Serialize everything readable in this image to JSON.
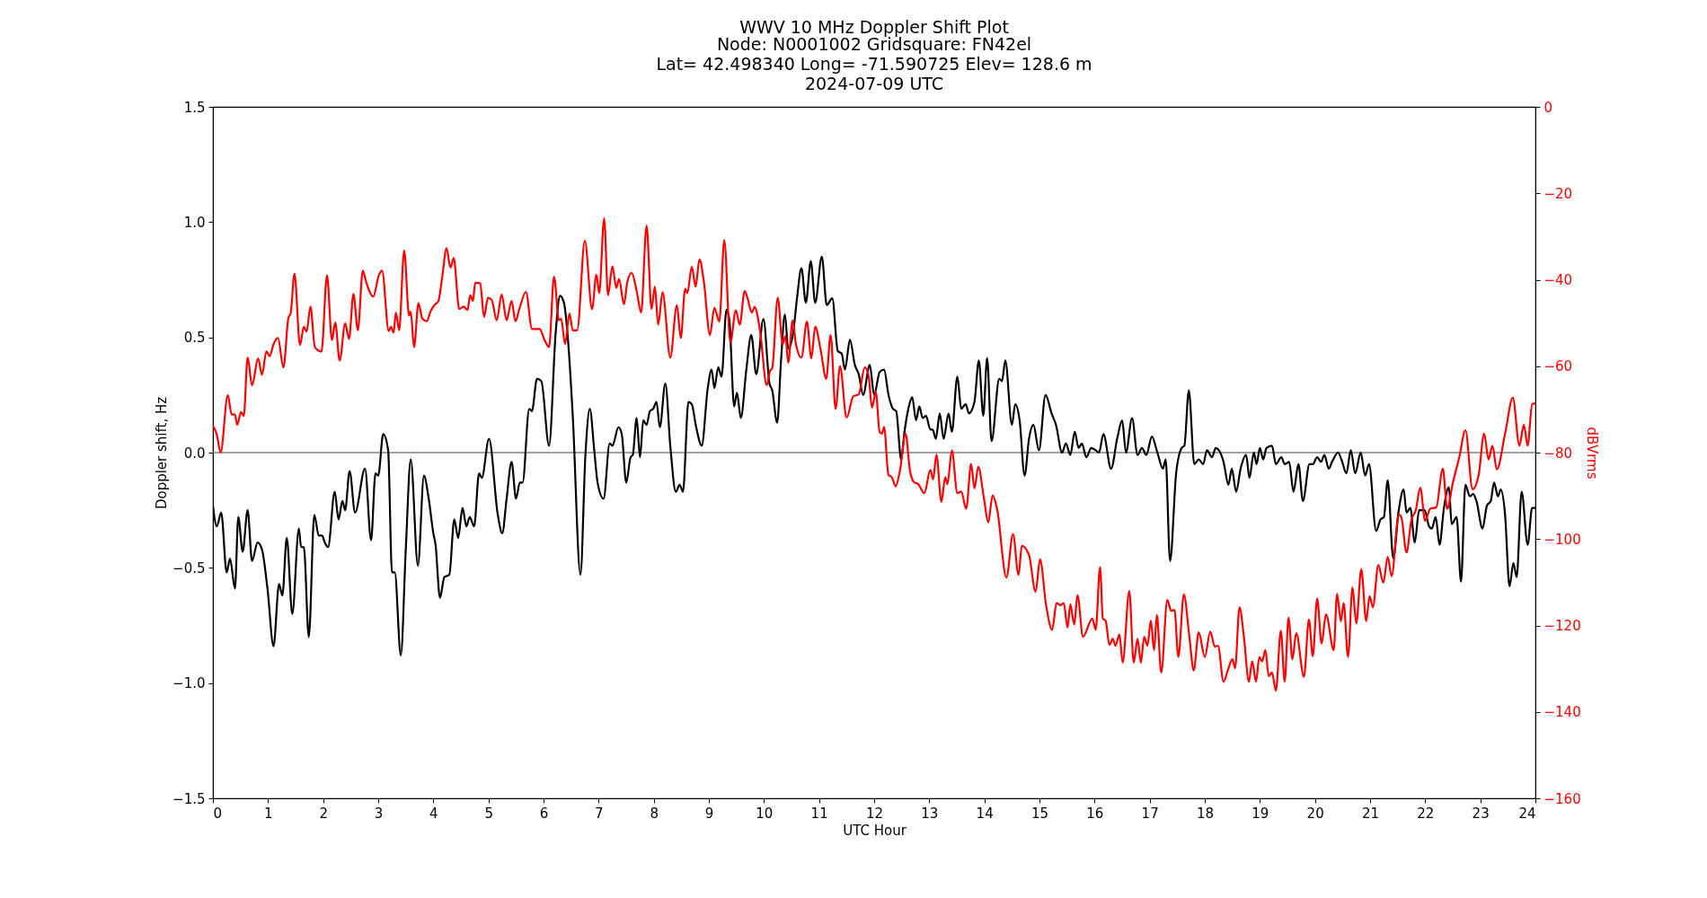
{
  "chart_data": {
    "type": "line",
    "title": "WWV 10 MHz Doppler Shift Plot",
    "subtitle": "Node:  N0001002     Gridsquare:  FN42el\nLat= 42.498340    Long= -71.590725    Elev= 128.6 m\n2024-07-09  UTC",
    "xlabel": "UTC Hour",
    "ylabel": "Doppler shift, Hz",
    "y2label": "dBVrms",
    "xlim": [
      0,
      24
    ],
    "xticks": [
      0,
      1,
      2,
      3,
      4,
      5,
      6,
      7,
      8,
      9,
      10,
      11,
      12,
      13,
      14,
      15,
      16,
      17,
      18,
      19,
      20,
      21,
      22,
      23,
      24
    ],
    "ylim": [
      -1.5,
      1.5
    ],
    "yticks": [
      {
        "value": -1.5,
        "label": "−1.5"
      },
      {
        "value": -1,
        "label": "−1.0"
      },
      {
        "value": -0.5,
        "label": "−0.5"
      },
      {
        "value": 0,
        "label": "0.0"
      },
      {
        "value": 0.5,
        "label": "0.5"
      },
      {
        "value": 1,
        "label": "1.0"
      },
      {
        "value": 1.5,
        "label": "1.5"
      }
    ],
    "y2lim": [
      -160,
      0
    ],
    "y2ticks": [
      {
        "value": -160,
        "label": "−160"
      },
      {
        "value": -140,
        "label": "−140"
      },
      {
        "value": -120,
        "label": "−120"
      },
      {
        "value": -100,
        "label": "−100"
      },
      {
        "value": -80,
        "label": "−80"
      },
      {
        "value": -60,
        "label": "−60"
      },
      {
        "value": -40,
        "label": "−40"
      },
      {
        "value": -20,
        "label": "−20"
      },
      0
    ],
    "grid": false,
    "ref_lines": [
      {
        "axis": "y",
        "value": 0,
        "color": "#808080"
      }
    ],
    "series": [
      {
        "color": "#000000",
        "x": [
          0,
          0.07,
          0.15,
          0.25,
          0.31,
          0.4,
          0.46,
          0.54,
          0.63,
          0.71,
          0.81,
          0.89,
          0.99,
          1.1,
          1.2,
          1.26,
          1.34,
          1.44,
          1.56,
          1.6,
          1.65,
          1.74,
          1.84,
          1.92,
          1.98,
          2.03,
          2.09,
          2.21,
          2.28,
          2.35,
          2.4,
          2.48,
          2.58,
          2.76,
          2.87,
          2.95,
          3,
          3.09,
          3.18,
          3.25,
          3.3,
          3.41,
          3.5,
          3.59,
          3.72,
          3.83,
          3.91,
          4,
          4.04,
          4.12,
          4.2,
          4.29,
          4.38,
          4.45,
          4.53,
          4.6,
          4.66,
          4.74,
          4.83,
          4.88,
          5.01,
          5.17,
          5.25,
          5.33,
          5.42,
          5.5,
          5.57,
          5.62,
          5.74,
          5.79,
          5.88,
          5.96,
          6.1,
          6.22,
          6.3,
          6.37,
          6.45,
          6.53,
          6.67,
          6.76,
          6.84,
          6.92,
          6.98,
          7.09,
          7.2,
          7.25,
          7.36,
          7.42,
          7.5,
          7.58,
          7.62,
          7.69,
          7.75,
          7.81,
          7.87,
          7.93,
          7.99,
          8.05,
          8.11,
          8.21,
          8.3,
          8.4,
          8.47,
          8.53,
          8.63,
          8.69,
          8.77,
          8.87,
          8.98,
          9.05,
          9.1,
          9.17,
          9.23,
          9.32,
          9.37,
          9.46,
          9.51,
          9.58,
          9.68,
          9.77,
          9.86,
          9.99,
          10.1,
          10.15,
          10.24,
          10.31,
          10.38,
          10.44,
          10.53,
          10.6,
          10.68,
          10.76,
          10.85,
          10.93,
          11.05,
          11.14,
          11.24,
          11.34,
          11.41,
          11.47,
          11.56,
          11.65,
          11.72,
          11.8,
          11.92,
          12,
          12.1,
          12.18,
          12.26,
          12.34,
          12.4,
          12.49,
          12.55,
          12.62,
          12.69,
          12.76,
          12.82,
          12.88,
          12.94,
          13.02,
          13.06,
          13.12,
          13.19,
          13.26,
          13.35,
          13.41,
          13.51,
          13.58,
          13.66,
          13.72,
          13.82,
          13.9,
          13.98,
          14.05,
          14.13,
          14.27,
          14.32,
          14.38,
          14.5,
          14.56,
          14.64,
          14.73,
          14.81,
          14.89,
          14.99,
          15.11,
          15.22,
          15.3,
          15.41,
          15.48,
          15.56,
          15.64,
          15.71,
          15.77,
          15.85,
          15.94,
          16.02,
          16.08,
          16.16,
          16.3,
          16.41,
          16.5,
          16.57,
          16.68,
          16.78,
          16.86,
          16.94,
          17.04,
          17.14,
          17.24,
          17.29,
          17.37,
          17.48,
          17.58,
          17.63,
          17.71,
          17.81,
          17.89,
          17.97,
          18.04,
          18.13,
          18.2,
          18.34,
          18.43,
          18.49,
          18.57,
          18.65,
          18.75,
          18.81,
          18.89,
          18.94,
          19,
          19.06,
          19.12,
          19.22,
          19.29,
          19.39,
          19.45,
          19.53,
          19.61,
          19.7,
          19.78,
          19.9,
          19.96,
          20.04,
          20.11,
          20.17,
          20.25,
          20.31,
          20.42,
          20.48,
          20.57,
          20.65,
          20.73,
          20.83,
          20.91,
          20.98,
          21.11,
          21.19,
          21.25,
          21.32,
          21.42,
          21.52,
          21.61,
          21.66,
          21.73,
          21.81,
          21.89,
          21.99,
          22.07,
          22.12,
          22.19,
          22.26,
          22.34,
          22.43,
          22.48,
          22.57,
          22.65,
          22.73,
          22.81,
          22.87,
          22.93,
          23.04,
          23.12,
          23.19,
          23.25,
          23.32,
          23.37,
          23.45,
          23.53,
          23.6,
          23.66,
          23.75,
          23.86,
          23.94,
          24
        ],
        "values": [
          -0.23,
          -0.32,
          -0.26,
          -0.52,
          -0.46,
          -0.59,
          -0.28,
          -0.43,
          -0.25,
          -0.47,
          -0.39,
          -0.42,
          -0.59,
          -0.84,
          -0.57,
          -0.62,
          -0.37,
          -0.7,
          -0.33,
          -0.41,
          -0.41,
          -0.8,
          -0.27,
          -0.36,
          -0.36,
          -0.39,
          -0.41,
          -0.17,
          -0.29,
          -0.21,
          -0.25,
          -0.08,
          -0.26,
          -0.07,
          -0.38,
          -0.09,
          -0.1,
          0.08,
          0.01,
          -0.52,
          -0.52,
          -0.88,
          -0.42,
          -0.03,
          -0.49,
          -0.1,
          -0.19,
          -0.35,
          -0.4,
          -0.63,
          -0.54,
          -0.53,
          -0.29,
          -0.37,
          -0.24,
          -0.32,
          -0.28,
          -0.32,
          -0.09,
          -0.11,
          0.06,
          -0.27,
          -0.35,
          -0.2,
          -0.04,
          -0.2,
          -0.13,
          -0.13,
          0.19,
          0.18,
          0.32,
          0.31,
          0.03,
          0.52,
          0.68,
          0.65,
          0.47,
          0.16,
          -0.53,
          -0.01,
          0.19,
          0.01,
          -0.13,
          -0.2,
          0.04,
          0.03,
          0.11,
          0.08,
          -0.13,
          -0.02,
          -0.01,
          0.15,
          -0.02,
          0.14,
          0.12,
          0.18,
          0.19,
          0.22,
          0.11,
          0.3,
          0.03,
          -0.17,
          -0.14,
          -0.17,
          0.22,
          0.21,
          0.11,
          0.03,
          0.28,
          0.36,
          0.28,
          0.37,
          0.33,
          0.62,
          0.58,
          0.2,
          0.26,
          0.15,
          0.36,
          0.51,
          0.34,
          0.58,
          0.3,
          0.27,
          0.13,
          0.4,
          0.6,
          0.45,
          0.52,
          0.67,
          0.8,
          0.65,
          0.83,
          0.65,
          0.85,
          0.64,
          0.67,
          0.44,
          0.43,
          0.36,
          0.49,
          0.38,
          0.34,
          0.25,
          0.38,
          0.25,
          0.35,
          0.36,
          0.25,
          0.19,
          0.18,
          -0.03,
          0.09,
          0.19,
          0.24,
          0.14,
          0.2,
          0.15,
          0.16,
          0.1,
          0.1,
          0.06,
          0.17,
          0.06,
          0.17,
          0.09,
          0.33,
          0.19,
          0.21,
          0.17,
          0.22,
          0.4,
          0.16,
          0.41,
          0.05,
          0.32,
          0.31,
          0.4,
          0.12,
          0.21,
          0.14,
          -0.1,
          0.06,
          0.12,
          0.01,
          0.25,
          0.17,
          0.12,
          0,
          0.04,
          -0.01,
          0.09,
          0.02,
          0.04,
          -0.02,
          0.02,
          0.01,
          0,
          0.08,
          -0.07,
          0.06,
          0.14,
          0,
          0.15,
          -0.01,
          0.02,
          -0.01,
          0.07,
          0,
          -0.07,
          -0.03,
          -0.47,
          -0.09,
          0.02,
          0.03,
          0.27,
          -0.05,
          -0.03,
          -0.05,
          0.01,
          -0.02,
          0.02,
          -0.04,
          -0.14,
          -0.07,
          -0.17,
          -0.07,
          -0.01,
          -0.11,
          0,
          -0.05,
          0.02,
          -0.03,
          0.02,
          0.03,
          -0.05,
          -0.02,
          -0.05,
          -0.04,
          -0.17,
          -0.05,
          -0.21,
          -0.05,
          -0.05,
          -0.02,
          -0.04,
          -0.01,
          -0.07,
          -0.04,
          0,
          -0.03,
          -0.09,
          0.01,
          -0.09,
          0,
          -0.1,
          -0.05,
          -0.34,
          -0.29,
          -0.28,
          -0.12,
          -0.46,
          -0.25,
          -0.16,
          -0.26,
          -0.24,
          -0.39,
          -0.25,
          -0.25,
          -0.32,
          -0.33,
          -0.28,
          -0.4,
          -0.24,
          -0.15,
          -0.31,
          -0.28,
          -0.56,
          -0.14,
          -0.19,
          -0.18,
          -0.21,
          -0.33,
          -0.23,
          -0.21,
          -0.13,
          -0.19,
          -0.16,
          -0.27,
          -0.58,
          -0.48,
          -0.54,
          -0.17,
          -0.4,
          -0.24,
          -0.24
        ]
      },
      {
        "color": "#ff0000",
        "axis": "y2",
        "x": [
          0,
          0.07,
          0.14,
          0.27,
          0.34,
          0.4,
          0.44,
          0.51,
          0.56,
          0.63,
          0.71,
          0.82,
          0.89,
          0.97,
          1.03,
          1.1,
          1.18,
          1.28,
          1.37,
          1.41,
          1.48,
          1.58,
          1.65,
          1.7,
          1.77,
          1.85,
          1.97,
          2.07,
          2.16,
          2.22,
          2.3,
          2.4,
          2.47,
          2.55,
          2.63,
          2.72,
          2.78,
          2.91,
          3.01,
          3.07,
          3.19,
          3.23,
          3.28,
          3.32,
          3.38,
          3.47,
          3.56,
          3.59,
          3.65,
          3.73,
          3.8,
          3.88,
          3.95,
          4.03,
          4.09,
          4.16,
          4.24,
          4.31,
          4.37,
          4.47,
          4.55,
          4.62,
          4.67,
          4.72,
          4.76,
          4.85,
          4.92,
          4.99,
          5.06,
          5.15,
          5.24,
          5.33,
          5.42,
          5.49,
          5.56,
          5.68,
          5.79,
          5.93,
          6.02,
          6.1,
          6.19,
          6.28,
          6.32,
          6.39,
          6.47,
          6.53,
          6.61,
          6.75,
          6.88,
          6.96,
          7.01,
          7.1,
          7.17,
          7.25,
          7.32,
          7.37,
          7.46,
          7.52,
          7.6,
          7.69,
          7.77,
          7.87,
          7.96,
          8.02,
          8.08,
          8.16,
          8.3,
          8.42,
          8.49,
          8.57,
          8.61,
          8.69,
          8.76,
          8.83,
          8.91,
          9.02,
          9.1,
          9.19,
          9.28,
          9.39,
          9.49,
          9.56,
          9.65,
          9.7,
          9.78,
          9.83,
          9.93,
          10.05,
          10.11,
          10.15,
          10.25,
          10.34,
          10.39,
          10.44,
          10.52,
          10.58,
          10.68,
          10.78,
          10.86,
          10.93,
          11.03,
          11.13,
          11.21,
          11.3,
          11.38,
          11.5,
          11.62,
          11.72,
          11.83,
          11.9,
          11.96,
          12.03,
          12.1,
          12.14,
          12.18,
          12.26,
          12.32,
          12.39,
          12.47,
          12.57,
          12.65,
          12.72,
          12.8,
          12.91,
          13.02,
          13.07,
          13.13,
          13.22,
          13.29,
          13.33,
          13.41,
          13.51,
          13.58,
          13.67,
          13.76,
          13.82,
          13.89,
          13.99,
          14.07,
          14.15,
          14.23,
          14.4,
          14.52,
          14.62,
          14.68,
          14.81,
          14.93,
          15.01,
          15.12,
          15.23,
          15.31,
          15.38,
          15.44,
          15.51,
          15.56,
          15.63,
          15.69,
          15.79,
          15.96,
          16.02,
          16.1,
          16.15,
          16.2,
          16.27,
          16.33,
          16.38,
          16.45,
          16.51,
          16.63,
          16.71,
          16.78,
          16.84,
          16.9,
          16.96,
          17.02,
          17.08,
          17.13,
          17.21,
          17.32,
          17.39,
          17.45,
          17.52,
          17.62,
          17.72,
          17.8,
          17.89,
          18,
          18.1,
          18.18,
          18.24,
          18.34,
          18.43,
          18.5,
          18.55,
          18.63,
          18.71,
          18.8,
          18.86,
          18.93,
          18.99,
          19.04,
          19.1,
          19.16,
          19.22,
          19.29,
          19.38,
          19.45,
          19.52,
          19.59,
          19.66,
          19.8,
          19.89,
          19.96,
          20.04,
          20.12,
          20.2,
          20.34,
          20.4,
          20.47,
          20.52,
          20.6,
          20.68,
          20.75,
          20.84,
          20.93,
          20.99,
          21.05,
          21.15,
          21.24,
          21.32,
          21.39,
          21.52,
          21.57,
          21.66,
          21.75,
          21.83,
          21.91,
          22,
          22.09,
          22.2,
          22.32,
          22.4,
          22.5,
          22.62,
          22.73,
          22.86,
          22.97,
          23.07,
          23.15,
          23.22,
          23.3,
          23.45,
          23.59,
          23.71,
          23.79,
          23.86,
          23.94,
          24
        ],
        "values": [
          -73.8,
          -75.8,
          -80,
          -66.7,
          -71.2,
          -71.2,
          -73.6,
          -70.6,
          -71.5,
          -58,
          -64.4,
          -58.2,
          -62,
          -56.6,
          -57.7,
          -54.9,
          -53.5,
          -60.3,
          -48.8,
          -47.8,
          -38.6,
          -55.1,
          -50.9,
          -52,
          -46.2,
          -55.6,
          -56.6,
          -39,
          -54,
          -49.9,
          -58.7,
          -50.1,
          -53.7,
          -43.3,
          -51.7,
          -37.9,
          -40.5,
          -43.9,
          -39,
          -37.9,
          -51.9,
          -50.9,
          -52.2,
          -47.6,
          -51.7,
          -33.2,
          -48.3,
          -47.4,
          -55.6,
          -45.4,
          -49,
          -49.6,
          -47.3,
          -45.7,
          -45,
          -39.5,
          -32.7,
          -37.2,
          -35,
          -46.8,
          -46.2,
          -47,
          -43.6,
          -44.9,
          -40.7,
          -40.8,
          -48.6,
          -44.2,
          -44.7,
          -49.4,
          -43.4,
          -49.4,
          -44.9,
          -49.6,
          -46.8,
          -42.8,
          -51.4,
          -51.4,
          -54,
          -55.6,
          -39.3,
          -49.4,
          -49,
          -54.9,
          -47.8,
          -51.7,
          -51.7,
          -31,
          -46.8,
          -38.8,
          -43.1,
          -25.8,
          -43.6,
          -36.9,
          -41.9,
          -39.8,
          -45.7,
          -40.5,
          -38.4,
          -42.6,
          -47.6,
          -27.5,
          -46.8,
          -41.6,
          -50.4,
          -42.9,
          -58,
          -45.9,
          -53.5,
          -42.1,
          -43.1,
          -37,
          -41.6,
          -35.3,
          -40.5,
          -52.8,
          -46.5,
          -49.7,
          -30.8,
          -54.5,
          -47.1,
          -50.4,
          -42.6,
          -44.2,
          -47.6,
          -46.3,
          -51.9,
          -64.4,
          -61.1,
          -60.5,
          -44.2,
          -54.9,
          -53,
          -59.2,
          -49.4,
          -54.9,
          -58,
          -49.7,
          -58.2,
          -50.9,
          -56.3,
          -62.9,
          -52.8,
          -69.9,
          -60,
          -71.9,
          -67,
          -66.5,
          -60.3,
          -62.3,
          -69.6,
          -66,
          -75.3,
          -75.6,
          -74.1,
          -85.2,
          -85.7,
          -87.8,
          -84,
          -75.6,
          -84.2,
          -86.8,
          -87.3,
          -89.4,
          -84,
          -86.2,
          -80.5,
          -91.4,
          -85.7,
          -87.3,
          -79.5,
          -89.4,
          -89,
          -93,
          -82.6,
          -88.3,
          -83.3,
          -90.4,
          -96.1,
          -89.9,
          -93,
          -108.9,
          -98.9,
          -108.3,
          -101.6,
          -103.7,
          -112.2,
          -104.7,
          -115.3,
          -121,
          -114.8,
          -115.3,
          -114.8,
          -120.5,
          -115.1,
          -119.8,
          -113,
          -122.6,
          -118.4,
          -121,
          -106.5,
          -118.4,
          -118.9,
          -124.5,
          -123.1,
          -124.7,
          -122.1,
          -128.6,
          -112,
          -128.6,
          -123.1,
          -128.6,
          -122.6,
          -124.7,
          -118.9,
          -125.7,
          -117.6,
          -130.9,
          -114.1,
          -116.6,
          -116.4,
          -127.3,
          -112.8,
          -122.6,
          -130.4,
          -121.6,
          -127.3,
          -121.4,
          -124.9,
          -124.7,
          -133,
          -129.9,
          -127.8,
          -129.9,
          -115.8,
          -122.6,
          -133,
          -128.3,
          -133,
          -127.3,
          -128.3,
          -125.7,
          -131.7,
          -130.9,
          -135.1,
          -121.2,
          -133,
          -118.2,
          -127.8,
          -121.8,
          -131.9,
          -118.6,
          -127.1,
          -113.8,
          -124.2,
          -117.4,
          -125.7,
          -112.7,
          -119,
          -114.8,
          -127.3,
          -111.2,
          -119.5,
          -107,
          -119,
          -113.2,
          -115.8,
          -106,
          -110.1,
          -104.1,
          -108.6,
          -94.3,
          -95.1,
          -103.1,
          -95.6,
          -93.3,
          -88.1,
          -95.8,
          -93,
          -92.7,
          -83.7,
          -93,
          -87.1,
          -81,
          -74.8,
          -88.5,
          -85.2,
          -75.6,
          -81.6,
          -78.4,
          -83.9,
          -75.6,
          -67.3,
          -78.4,
          -73.6,
          -78.4,
          -68.8,
          -68.6
        ]
      }
    ]
  }
}
